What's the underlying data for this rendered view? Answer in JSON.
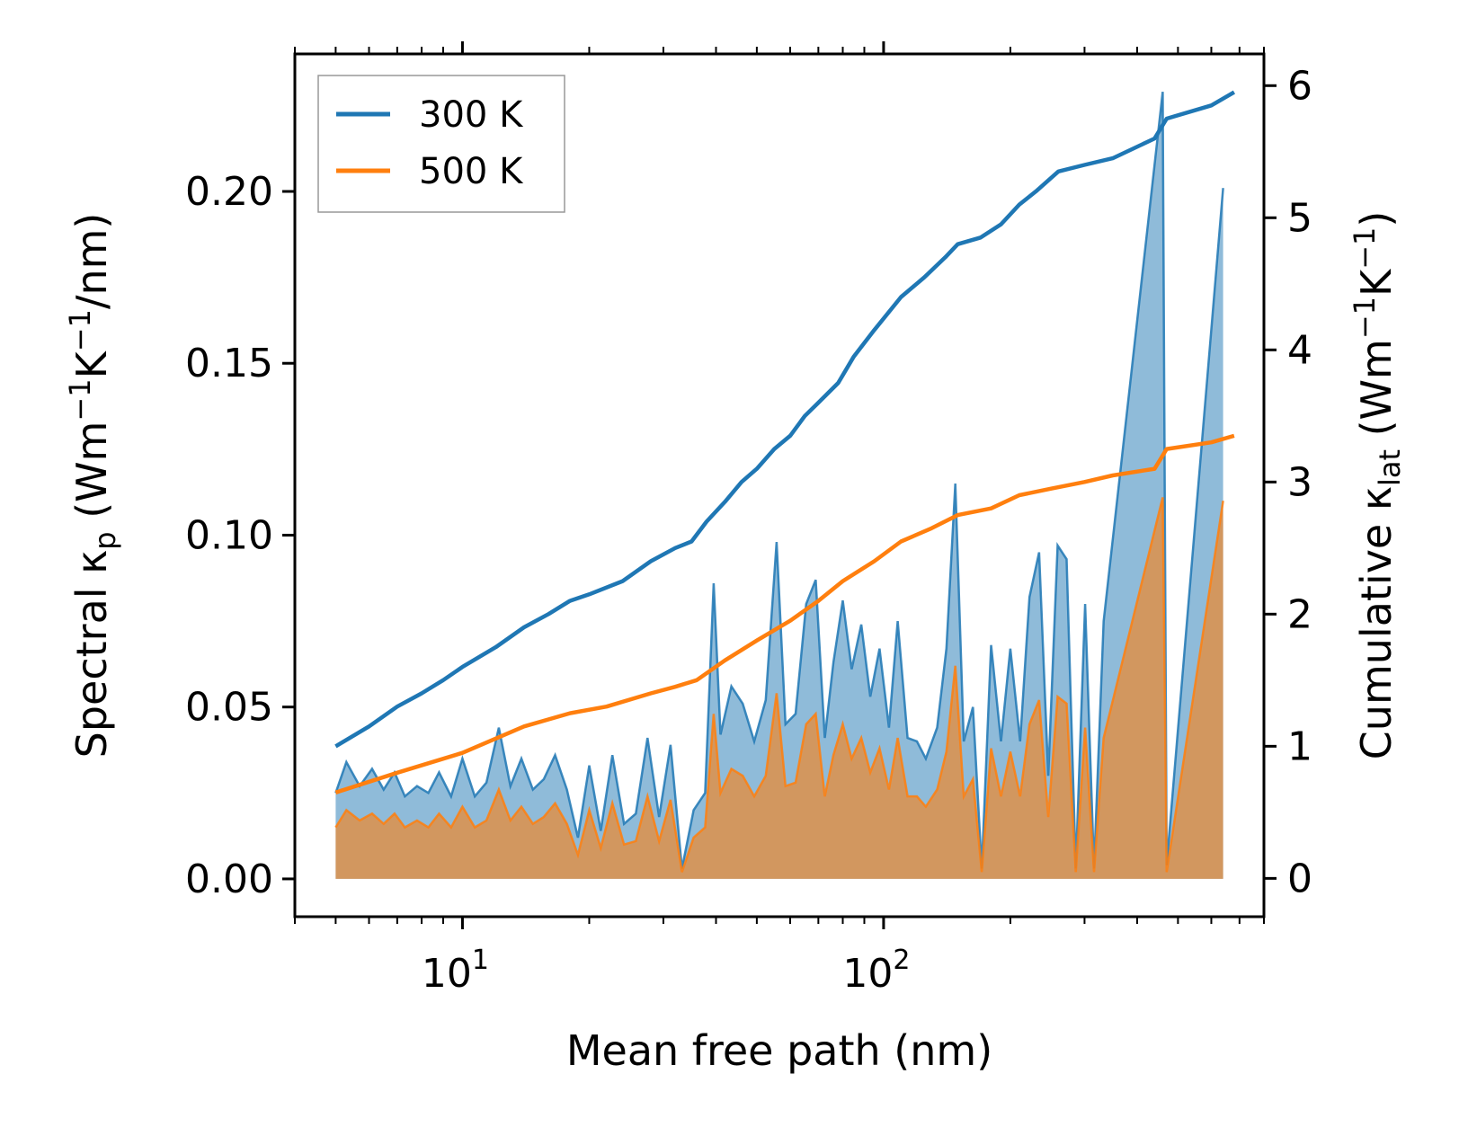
{
  "chart_data": {
    "type": "line+area",
    "xlabel": "Mean free path (nm)",
    "ylabel_left": {
      "prefix": "Spectral κ",
      "sub": "p",
      "unit": " (Wm",
      "sup1": "−1",
      "mid": "K",
      "sup2": "−1",
      "tail": "/nm)"
    },
    "ylabel_right": {
      "prefix": "Cumulative κ",
      "sub": "lat",
      "unit": " (Wm",
      "sup1": "−1",
      "mid": "K",
      "sup2": "−1",
      "tail": ")"
    },
    "xscale": "log",
    "xlim": [
      4.0,
      800
    ],
    "ylim_left": [
      -0.011,
      0.24
    ],
    "ylim_right": [
      -0.29,
      6.24
    ],
    "x_ticks": [
      {
        "value": 10,
        "base": "10",
        "exp": "1"
      },
      {
        "value": 100,
        "base": "10",
        "exp": "2"
      }
    ],
    "y_ticks_left": [
      "0.00",
      "0.05",
      "0.10",
      "0.15",
      "0.20"
    ],
    "y_ticks_left_values": [
      0.0,
      0.05,
      0.1,
      0.15,
      0.2
    ],
    "y_ticks_right": [
      "0",
      "1",
      "2",
      "3",
      "4",
      "5",
      "6"
    ],
    "y_ticks_right_values": [
      0,
      1,
      2,
      3,
      4,
      5,
      6
    ],
    "legend": {
      "position": "top-left",
      "entries": [
        "300 K",
        "500 K"
      ]
    },
    "series": [
      {
        "name": "300 K",
        "color": "#1f77b4",
        "fill": "#1f77b4",
        "spectral": [
          [
            5,
            0.025
          ],
          [
            5.3,
            0.034
          ],
          [
            5.7,
            0.027
          ],
          [
            6.1,
            0.032
          ],
          [
            6.5,
            0.026
          ],
          [
            6.9,
            0.031
          ],
          [
            7.3,
            0.024
          ],
          [
            7.8,
            0.027
          ],
          [
            8.3,
            0.025
          ],
          [
            8.8,
            0.031
          ],
          [
            9.4,
            0.024
          ],
          [
            10,
            0.035
          ],
          [
            10.7,
            0.024
          ],
          [
            11.4,
            0.028
          ],
          [
            12.2,
            0.044
          ],
          [
            13,
            0.027
          ],
          [
            13.8,
            0.035
          ],
          [
            14.7,
            0.026
          ],
          [
            15.6,
            0.029
          ],
          [
            16.6,
            0.036
          ],
          [
            17.7,
            0.026
          ],
          [
            18.8,
            0.012
          ],
          [
            20,
            0.033
          ],
          [
            21.3,
            0.014
          ],
          [
            22.7,
            0.036
          ],
          [
            24.2,
            0.016
          ],
          [
            25.8,
            0.019
          ],
          [
            27.5,
            0.041
          ],
          [
            29.3,
            0.018
          ],
          [
            31.2,
            0.039
          ],
          [
            33.2,
            0.003
          ],
          [
            35.4,
            0.02
          ],
          [
            37.7,
            0.025
          ],
          [
            39.5,
            0.086
          ],
          [
            41,
            0.042
          ],
          [
            43.5,
            0.056
          ],
          [
            46.3,
            0.051
          ],
          [
            49.3,
            0.04
          ],
          [
            52.5,
            0.052
          ],
          [
            55.7,
            0.098
          ],
          [
            58.5,
            0.045
          ],
          [
            61.8,
            0.048
          ],
          [
            65.5,
            0.08
          ],
          [
            69,
            0.087
          ],
          [
            72.5,
            0.041
          ],
          [
            76,
            0.063
          ],
          [
            80,
            0.081
          ],
          [
            84,
            0.061
          ],
          [
            88.5,
            0.074
          ],
          [
            93,
            0.053
          ],
          [
            97.8,
            0.067
          ],
          [
            103,
            0.044
          ],
          [
            108,
            0.075
          ],
          [
            114,
            0.041
          ],
          [
            120,
            0.04
          ],
          [
            126,
            0.035
          ],
          [
            134,
            0.044
          ],
          [
            141,
            0.067
          ],
          [
            148,
            0.115
          ],
          [
            155,
            0.04
          ],
          [
            163,
            0.05
          ],
          [
            171,
            0.003
          ],
          [
            180,
            0.068
          ],
          [
            190,
            0.04
          ],
          [
            200,
            0.067
          ],
          [
            211,
            0.04
          ],
          [
            222,
            0.082
          ],
          [
            234,
            0.095
          ],
          [
            246,
            0.03
          ],
          [
            259,
            0.097
          ],
          [
            272,
            0.093
          ],
          [
            286,
            0.003
          ],
          [
            301,
            0.08
          ],
          [
            316,
            0.003
          ],
          [
            333,
            0.075
          ],
          [
            460,
            0.229
          ],
          [
            470,
            0.004
          ],
          [
            640,
            0.201
          ]
        ],
        "cumulative": [
          [
            5,
            1.0
          ],
          [
            6,
            1.15
          ],
          [
            7,
            1.3
          ],
          [
            8,
            1.4
          ],
          [
            9,
            1.5
          ],
          [
            10,
            1.6
          ],
          [
            12,
            1.75
          ],
          [
            14,
            1.9
          ],
          [
            16,
            2.0
          ],
          [
            18,
            2.1
          ],
          [
            20,
            2.15
          ],
          [
            24,
            2.25
          ],
          [
            28,
            2.4
          ],
          [
            32,
            2.5
          ],
          [
            35,
            2.55
          ],
          [
            38,
            2.7
          ],
          [
            42,
            2.85
          ],
          [
            46,
            3.0
          ],
          [
            50,
            3.1
          ],
          [
            55,
            3.25
          ],
          [
            60,
            3.35
          ],
          [
            65,
            3.5
          ],
          [
            70,
            3.6
          ],
          [
            78,
            3.75
          ],
          [
            85,
            3.95
          ],
          [
            95,
            4.15
          ],
          [
            110,
            4.4
          ],
          [
            125,
            4.55
          ],
          [
            140,
            4.7
          ],
          [
            150,
            4.8
          ],
          [
            170,
            4.85
          ],
          [
            190,
            4.95
          ],
          [
            210,
            5.1
          ],
          [
            230,
            5.2
          ],
          [
            260,
            5.35
          ],
          [
            300,
            5.4
          ],
          [
            350,
            5.45
          ],
          [
            440,
            5.6
          ],
          [
            470,
            5.75
          ],
          [
            600,
            5.85
          ],
          [
            680,
            5.95
          ]
        ]
      },
      {
        "name": "500 K",
        "color": "#ff7f0e",
        "fill": "#ff7f0e",
        "spectral": [
          [
            5,
            0.015
          ],
          [
            5.3,
            0.02
          ],
          [
            5.7,
            0.017
          ],
          [
            6.1,
            0.019
          ],
          [
            6.5,
            0.016
          ],
          [
            6.9,
            0.019
          ],
          [
            7.3,
            0.015
          ],
          [
            7.8,
            0.017
          ],
          [
            8.3,
            0.015
          ],
          [
            8.8,
            0.019
          ],
          [
            9.4,
            0.015
          ],
          [
            10,
            0.021
          ],
          [
            10.7,
            0.015
          ],
          [
            11.4,
            0.017
          ],
          [
            12.2,
            0.026
          ],
          [
            13,
            0.017
          ],
          [
            13.8,
            0.021
          ],
          [
            14.7,
            0.016
          ],
          [
            15.6,
            0.018
          ],
          [
            16.6,
            0.022
          ],
          [
            17.7,
            0.016
          ],
          [
            18.8,
            0.007
          ],
          [
            20,
            0.02
          ],
          [
            21.3,
            0.009
          ],
          [
            22.7,
            0.022
          ],
          [
            24.2,
            0.01
          ],
          [
            25.8,
            0.011
          ],
          [
            27.5,
            0.024
          ],
          [
            29.3,
            0.011
          ],
          [
            31.2,
            0.023
          ],
          [
            33.2,
            0.002
          ],
          [
            35.4,
            0.012
          ],
          [
            37.7,
            0.015
          ],
          [
            39.5,
            0.048
          ],
          [
            41,
            0.025
          ],
          [
            43.5,
            0.032
          ],
          [
            46.3,
            0.03
          ],
          [
            49.3,
            0.024
          ],
          [
            52.5,
            0.03
          ],
          [
            55.7,
            0.054
          ],
          [
            58.5,
            0.027
          ],
          [
            61.8,
            0.028
          ],
          [
            65.5,
            0.045
          ],
          [
            69,
            0.048
          ],
          [
            72.5,
            0.024
          ],
          [
            76,
            0.036
          ],
          [
            80,
            0.045
          ],
          [
            84,
            0.035
          ],
          [
            88.5,
            0.041
          ],
          [
            93,
            0.031
          ],
          [
            97.8,
            0.038
          ],
          [
            103,
            0.026
          ],
          [
            108,
            0.041
          ],
          [
            114,
            0.024
          ],
          [
            120,
            0.024
          ],
          [
            126,
            0.021
          ],
          [
            134,
            0.026
          ],
          [
            141,
            0.037
          ],
          [
            148,
            0.062
          ],
          [
            155,
            0.024
          ],
          [
            163,
            0.029
          ],
          [
            171,
            0.002
          ],
          [
            180,
            0.038
          ],
          [
            190,
            0.024
          ],
          [
            200,
            0.037
          ],
          [
            211,
            0.024
          ],
          [
            222,
            0.045
          ],
          [
            234,
            0.052
          ],
          [
            246,
            0.018
          ],
          [
            259,
            0.053
          ],
          [
            272,
            0.051
          ],
          [
            286,
            0.002
          ],
          [
            301,
            0.044
          ],
          [
            316,
            0.002
          ],
          [
            333,
            0.041
          ],
          [
            460,
            0.111
          ],
          [
            470,
            0.002
          ],
          [
            640,
            0.11
          ]
        ],
        "cumulative": [
          [
            5,
            0.65
          ],
          [
            7,
            0.8
          ],
          [
            10,
            0.95
          ],
          [
            14,
            1.15
          ],
          [
            18,
            1.25
          ],
          [
            22,
            1.3
          ],
          [
            28,
            1.4
          ],
          [
            32,
            1.45
          ],
          [
            36,
            1.5
          ],
          [
            42,
            1.65
          ],
          [
            50,
            1.8
          ],
          [
            60,
            1.95
          ],
          [
            70,
            2.1
          ],
          [
            80,
            2.25
          ],
          [
            95,
            2.4
          ],
          [
            110,
            2.55
          ],
          [
            130,
            2.65
          ],
          [
            150,
            2.75
          ],
          [
            180,
            2.8
          ],
          [
            210,
            2.9
          ],
          [
            250,
            2.95
          ],
          [
            300,
            3.0
          ],
          [
            350,
            3.05
          ],
          [
            440,
            3.1
          ],
          [
            470,
            3.25
          ],
          [
            600,
            3.3
          ],
          [
            680,
            3.35
          ]
        ]
      }
    ]
  }
}
